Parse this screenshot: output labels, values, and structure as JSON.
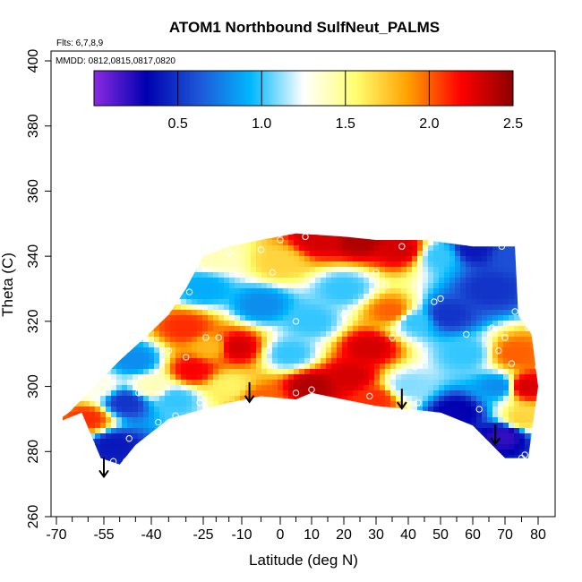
{
  "chart_data": {
    "type": "heatmap",
    "title": "ATOM1 Northbound SulfNeut_PALMS",
    "annotations": {
      "flights": "Flts: 6,7,8,9",
      "dates": "MMDD: 0812,0815,0817,0820"
    },
    "xlabel": "Latitude (deg N)",
    "ylabel": "Theta (C)",
    "xlim": [
      -70,
      82
    ],
    "ylim": [
      260,
      400
    ],
    "x_ticks": [
      -70,
      -55,
      -40,
      -25,
      -10,
      0,
      10,
      20,
      30,
      40,
      50,
      60,
      70,
      80
    ],
    "x_tick_labels": [
      "-70",
      "-55",
      "-40",
      "-25",
      "-10",
      "0",
      "10",
      "20",
      "30",
      "40",
      "50",
      "60",
      "70",
      "80"
    ],
    "x_minor_step": 5,
    "y_ticks": [
      260,
      280,
      300,
      320,
      340,
      360,
      380,
      400
    ],
    "y_tick_labels": [
      "260",
      "280",
      "300",
      "320",
      "340",
      "360",
      "380",
      "400"
    ],
    "colorbar": {
      "range": [
        0,
        2.5
      ],
      "ticks": [
        0.5,
        1.0,
        1.5,
        2.0,
        2.5
      ],
      "tick_labels": [
        "0.5",
        "1.0",
        "1.5",
        "2.0",
        "2.5"
      ],
      "colors": [
        "#8a2be2",
        "#0000b0",
        "#1e56d8",
        "#00b8ff",
        "#ffffff",
        "#ffff70",
        "#ffa000",
        "#ff0000",
        "#8b0000"
      ]
    },
    "boundary": [
      [
        -72,
        288
      ],
      [
        -62,
        292
      ],
      [
        -56,
        278
      ],
      [
        -50,
        276
      ],
      [
        -45,
        282
      ],
      [
        -35,
        290
      ],
      [
        -25,
        293
      ],
      [
        -15,
        295
      ],
      [
        -5,
        297
      ],
      [
        5,
        296
      ],
      [
        10,
        298
      ],
      [
        20,
        296
      ],
      [
        30,
        294
      ],
      [
        40,
        293
      ],
      [
        50,
        292
      ],
      [
        60,
        288
      ],
      [
        70,
        278
      ],
      [
        77,
        278
      ],
      [
        80,
        300
      ],
      [
        78,
        316
      ],
      [
        74,
        322
      ],
      [
        73,
        343
      ],
      [
        60,
        343
      ],
      [
        45,
        345
      ],
      [
        30,
        345
      ],
      [
        20,
        346
      ],
      [
        5,
        347
      ],
      [
        -5,
        345
      ],
      [
        -15,
        343
      ],
      [
        -25,
        340
      ],
      [
        -30,
        330
      ],
      [
        -35,
        322
      ],
      [
        -42,
        315
      ],
      [
        -50,
        308
      ],
      [
        -58,
        300
      ],
      [
        -66,
        292
      ]
    ],
    "field_anchors": [
      {
        "lat": -60,
        "theta": 290,
        "value": 2.1
      },
      {
        "lat": -57,
        "theta": 300,
        "value": 1.3
      },
      {
        "lat": -52,
        "theta": 282,
        "value": 0.4
      },
      {
        "lat": -48,
        "theta": 295,
        "value": 0.5
      },
      {
        "lat": -45,
        "theta": 308,
        "value": 0.8
      },
      {
        "lat": -40,
        "theta": 300,
        "value": 1.4
      },
      {
        "lat": -33,
        "theta": 296,
        "value": 1.0
      },
      {
        "lat": -30,
        "theta": 318,
        "value": 2.1
      },
      {
        "lat": -28,
        "theta": 305,
        "value": 2.2
      },
      {
        "lat": -25,
        "theta": 330,
        "value": 0.9
      },
      {
        "lat": -22,
        "theta": 312,
        "value": 1.8
      },
      {
        "lat": -15,
        "theta": 300,
        "value": 1.6
      },
      {
        "lat": -12,
        "theta": 312,
        "value": 2.3
      },
      {
        "lat": -5,
        "theta": 296,
        "value": 2.0
      },
      {
        "lat": -5,
        "theta": 325,
        "value": 0.8
      },
      {
        "lat": 0,
        "theta": 338,
        "value": 1.7
      },
      {
        "lat": 3,
        "theta": 310,
        "value": 1.0
      },
      {
        "lat": 10,
        "theta": 300,
        "value": 2.4
      },
      {
        "lat": 10,
        "theta": 320,
        "value": 1.0
      },
      {
        "lat": 12,
        "theta": 345,
        "value": 2.3
      },
      {
        "lat": 20,
        "theta": 330,
        "value": 1.0
      },
      {
        "lat": 22,
        "theta": 303,
        "value": 2.3
      },
      {
        "lat": 25,
        "theta": 345,
        "value": 2.4
      },
      {
        "lat": 28,
        "theta": 312,
        "value": 2.3
      },
      {
        "lat": 30,
        "theta": 296,
        "value": 2.1
      },
      {
        "lat": 35,
        "theta": 323,
        "value": 2.0
      },
      {
        "lat": 38,
        "theta": 342,
        "value": 2.3
      },
      {
        "lat": 40,
        "theta": 300,
        "value": 1.1
      },
      {
        "lat": 42,
        "theta": 320,
        "value": 1.0
      },
      {
        "lat": 50,
        "theta": 340,
        "value": 1.0
      },
      {
        "lat": 52,
        "theta": 322,
        "value": 0.5
      },
      {
        "lat": 58,
        "theta": 310,
        "value": 1.0
      },
      {
        "lat": 55,
        "theta": 292,
        "value": 0.3
      },
      {
        "lat": 65,
        "theta": 330,
        "value": 0.5
      },
      {
        "lat": 68,
        "theta": 300,
        "value": 0.8
      },
      {
        "lat": 70,
        "theta": 285,
        "value": 0.2
      },
      {
        "lat": 73,
        "theta": 310,
        "value": 2.0
      },
      {
        "lat": 76,
        "theta": 300,
        "value": 2.3
      },
      {
        "lat": 75,
        "theta": 290,
        "value": 1.7
      },
      {
        "lat": 72,
        "theta": 340,
        "value": 0.6
      },
      {
        "lat": -20,
        "theta": 340,
        "value": 1.4
      },
      {
        "lat": 60,
        "theta": 342,
        "value": 0.4
      }
    ],
    "sample_points": [
      [
        -52,
        277
      ],
      [
        -48,
        277
      ],
      [
        -47,
        284
      ],
      [
        -44,
        298
      ],
      [
        -38,
        289
      ],
      [
        -35,
        311
      ],
      [
        -33,
        291
      ],
      [
        -30,
        309
      ],
      [
        -29,
        329
      ],
      [
        -26,
        295
      ],
      [
        -24,
        315
      ],
      [
        -19,
        315
      ],
      [
        -15,
        341
      ],
      [
        -7,
        333
      ],
      [
        -5,
        342
      ],
      [
        -3,
        311
      ],
      [
        -2,
        335
      ],
      [
        0,
        345
      ],
      [
        5,
        320
      ],
      [
        8,
        346
      ],
      [
        10,
        299
      ],
      [
        5,
        298
      ],
      [
        20,
        322
      ],
      [
        20,
        347
      ],
      [
        28,
        297
      ],
      [
        30,
        335
      ],
      [
        33,
        331
      ],
      [
        35,
        315
      ],
      [
        38,
        343
      ],
      [
        42,
        306
      ],
      [
        43,
        295
      ],
      [
        48,
        326
      ],
      [
        50,
        327
      ],
      [
        58,
        316
      ],
      [
        62,
        293
      ],
      [
        65,
        313
      ],
      [
        66,
        318
      ],
      [
        68,
        311
      ],
      [
        69,
        343
      ],
      [
        70,
        315
      ],
      [
        72,
        307
      ],
      [
        73,
        323
      ],
      [
        75,
        278
      ],
      [
        76,
        279
      ],
      [
        77,
        318
      ],
      [
        78,
        320
      ],
      [
        80,
        306
      ]
    ],
    "arrows": [
      [
        -55,
        275
      ],
      [
        -8,
        298
      ],
      [
        38,
        296
      ],
      [
        67,
        285
      ]
    ]
  }
}
